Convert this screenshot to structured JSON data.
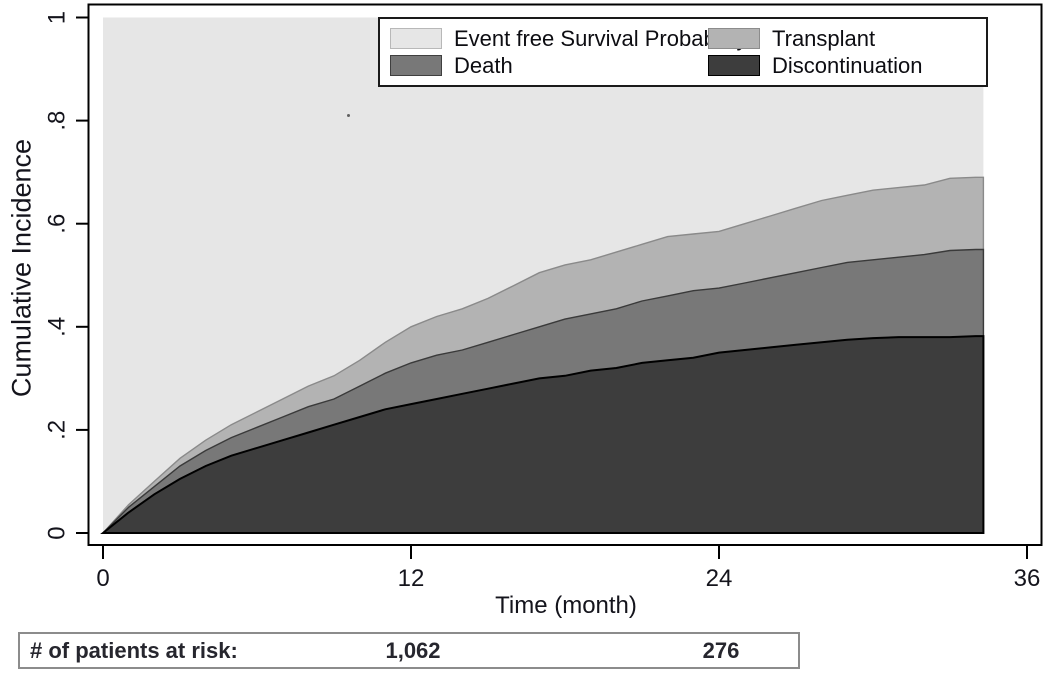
{
  "figure": {
    "ylabel": "Cumulative Incidence",
    "xlabel": "Time (month)"
  },
  "legend": {
    "items": [
      {
        "label": "Event free Survival Probability",
        "color": "#e6e6e6",
        "border": "#b8b8b8"
      },
      {
        "label": "Transplant",
        "color": "#b3b3b3",
        "border": "#8c8c8c"
      },
      {
        "label": "Death",
        "color": "#787878",
        "border": "#3f3f3f"
      },
      {
        "label": "Discontinuation",
        "color": "#3d3d3d",
        "border": "#000000"
      }
    ]
  },
  "risk_table": {
    "label": "# of patients at risk:",
    "entries": [
      {
        "month": 12,
        "value": "1,062"
      },
      {
        "month": 24,
        "value": "276"
      }
    ]
  },
  "chart_data": {
    "type": "area",
    "subtype": "stacked cumulative incidence (competing risks)",
    "title": "",
    "xlabel": "Time (month)",
    "ylabel": "Cumulative Incidence",
    "xlim": [
      0,
      36
    ],
    "ylim": [
      0,
      1
    ],
    "xticks": [
      {
        "label": "0",
        "value": 0
      },
      {
        "label": "12",
        "value": 12
      },
      {
        "label": "24",
        "value": 24
      },
      {
        "label": "36",
        "value": 36
      }
    ],
    "yticks": [
      {
        "label": "0",
        "value": 0
      },
      {
        "label": ".2",
        "value": 0.2
      },
      {
        "label": ".4",
        "value": 0.4
      },
      {
        "label": ".6",
        "value": 0.6
      },
      {
        "label": ".8",
        "value": 0.8
      },
      {
        "label": "1",
        "value": 1
      }
    ],
    "grid": false,
    "legend_position": "top-right-inside",
    "x_months": [
      0,
      1,
      2,
      3,
      4,
      5,
      6,
      7,
      8,
      9,
      10,
      11,
      12,
      13,
      14,
      15,
      16,
      17,
      18,
      19,
      20,
      21,
      22,
      23,
      24,
      25,
      26,
      27,
      28,
      29,
      30,
      31,
      32,
      33,
      34
    ],
    "data_end_month": 34.3,
    "background_series": {
      "name": "Event free Survival Probability",
      "color": "#e6e6e6",
      "extends_to": 1.0
    },
    "series": [
      {
        "name": "Discontinuation",
        "color": "#3d3d3d",
        "line_color": "#000000",
        "cumulative_top": [
          0,
          0.04,
          0.075,
          0.105,
          0.13,
          0.15,
          0.165,
          0.18,
          0.195,
          0.21,
          0.225,
          0.24,
          0.25,
          0.26,
          0.27,
          0.28,
          0.29,
          0.3,
          0.305,
          0.315,
          0.32,
          0.33,
          0.335,
          0.34,
          0.35,
          0.355,
          0.36,
          0.365,
          0.37,
          0.375,
          0.378,
          0.38,
          0.38,
          0.38,
          0.382
        ]
      },
      {
        "name": "Death",
        "color": "#787878",
        "line_color": "#3a3a3a",
        "cumulative_top": [
          0,
          0.05,
          0.09,
          0.13,
          0.16,
          0.185,
          0.205,
          0.225,
          0.245,
          0.26,
          0.285,
          0.31,
          0.33,
          0.345,
          0.355,
          0.37,
          0.385,
          0.4,
          0.415,
          0.425,
          0.435,
          0.45,
          0.46,
          0.47,
          0.475,
          0.485,
          0.495,
          0.505,
          0.515,
          0.525,
          0.53,
          0.535,
          0.54,
          0.548,
          0.55
        ]
      },
      {
        "name": "Transplant",
        "color": "#b3b3b3",
        "line_color": "#8a8a8a",
        "cumulative_top": [
          0,
          0.055,
          0.1,
          0.145,
          0.18,
          0.21,
          0.235,
          0.26,
          0.285,
          0.305,
          0.335,
          0.37,
          0.4,
          0.42,
          0.435,
          0.455,
          0.48,
          0.505,
          0.52,
          0.53,
          0.545,
          0.56,
          0.575,
          0.58,
          0.585,
          0.6,
          0.615,
          0.63,
          0.645,
          0.655,
          0.665,
          0.67,
          0.675,
          0.688,
          0.69
        ]
      }
    ]
  }
}
